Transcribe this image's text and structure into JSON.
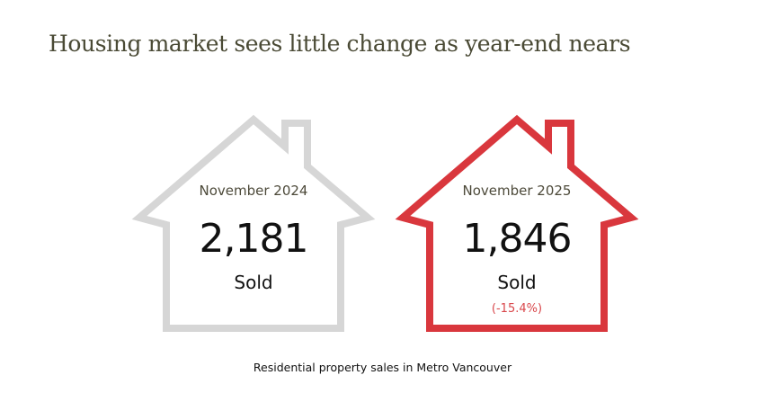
{
  "title": "Housing market sees little change as year-end nears",
  "caption": "Residential property sales in Metro Vancouver",
  "chart_data": {
    "type": "table",
    "title": "Housing market sees little change as year-end nears",
    "caption": "Residential property sales in Metro Vancouver",
    "items": [
      {
        "period": "November 2024",
        "value": 2181,
        "value_text": "2,181",
        "label": "Sold",
        "change": null,
        "color": "#d6d6d6"
      },
      {
        "period": "November 2025",
        "value": 1846,
        "value_text": "1,846",
        "label": "Sold",
        "change": "(-15.4%)",
        "color": "#d9373d"
      }
    ]
  }
}
